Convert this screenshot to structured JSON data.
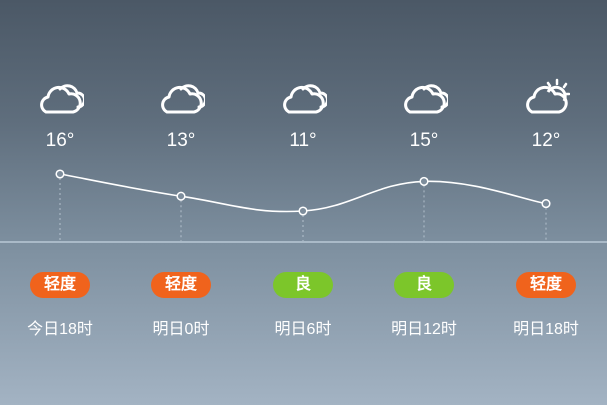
{
  "colors": {
    "moderate": "#f0631c",
    "good": "#7cc62a",
    "line": "#ffffff"
  },
  "forecast": [
    {
      "time": "今日18时",
      "temp": "16°",
      "temp_value": 16,
      "icon": "cloudy-icon",
      "aqi": "轻度",
      "aqi_level": "moderate"
    },
    {
      "time": "明日0时",
      "temp": "13°",
      "temp_value": 13,
      "icon": "cloudy-icon",
      "aqi": "轻度",
      "aqi_level": "moderate"
    },
    {
      "time": "明日6时",
      "temp": "11°",
      "temp_value": 11,
      "icon": "cloudy-icon",
      "aqi": "良",
      "aqi_level": "good"
    },
    {
      "time": "明日12时",
      "temp": "15°",
      "temp_value": 15,
      "icon": "cloudy-icon",
      "aqi": "良",
      "aqi_level": "good"
    },
    {
      "time": "明日18时",
      "temp": "12°",
      "temp_value": 12,
      "icon": "partly-cloudy-icon",
      "aqi": "轻度",
      "aqi_level": "moderate"
    }
  ]
}
